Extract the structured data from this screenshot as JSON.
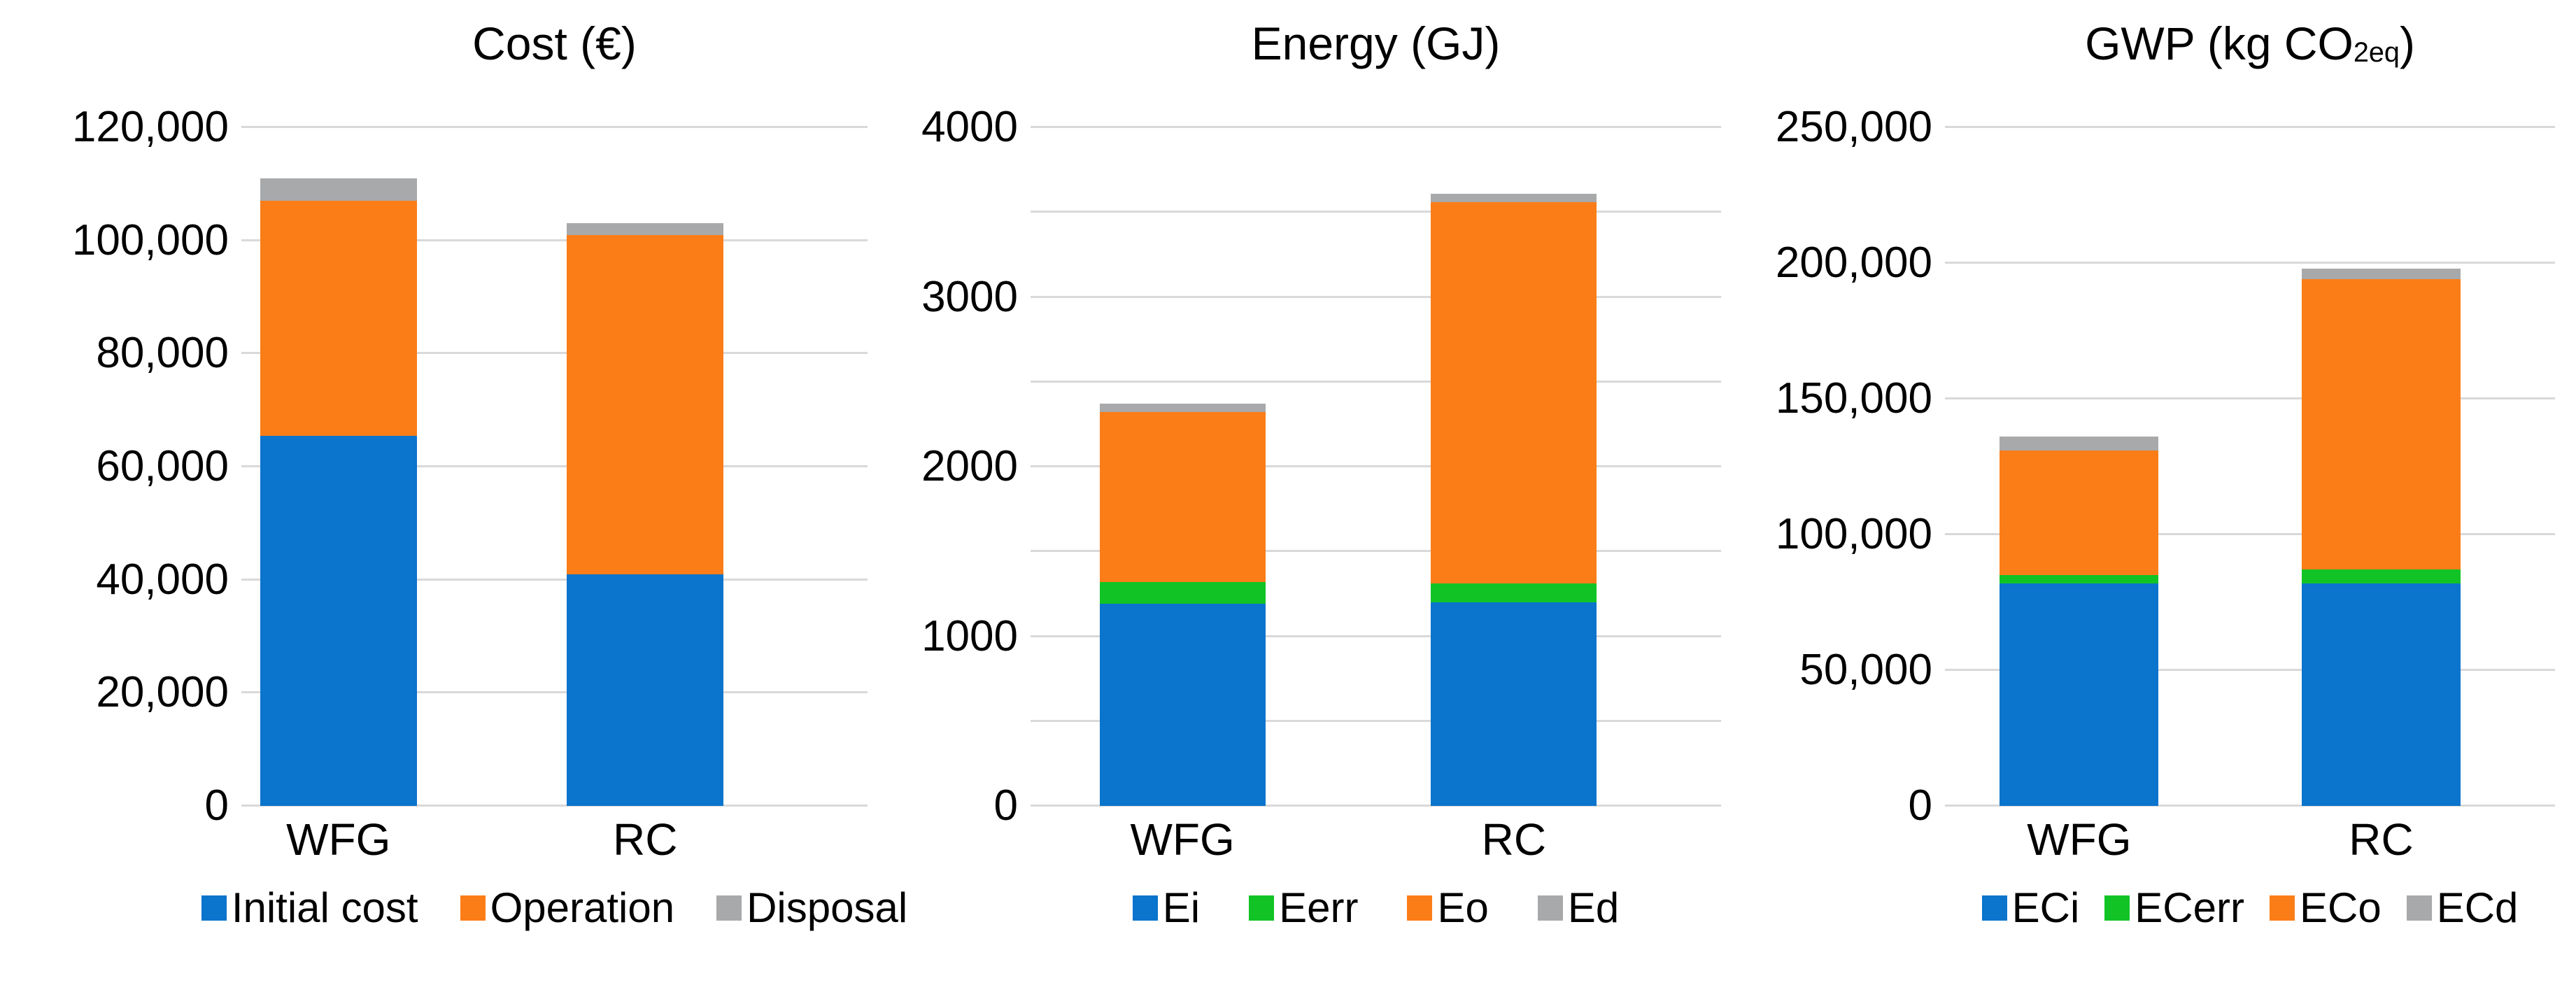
{
  "figure_background": "#FFFFFF",
  "colors": {
    "blue": "#0B74CC",
    "green": "#12C326",
    "orange": "#FB7D17",
    "gray": "#A8A9AB",
    "gridline": "#D9D9D9",
    "text": "#000000"
  },
  "chart_data": [
    {
      "type": "bar",
      "stacked": true,
      "title": "Cost (€)",
      "categories": [
        "WFG",
        "RC"
      ],
      "series": [
        {
          "name": "Initial cost",
          "color": "#0B74CC",
          "values": [
            65500,
            41000
          ]
        },
        {
          "name": "Operation",
          "color": "#FB7D17",
          "values": [
            41500,
            60000
          ]
        },
        {
          "name": "Disposal",
          "color": "#A8A9AB",
          "values": [
            4000,
            2000
          ]
        }
      ],
      "totals": [
        111000,
        103000
      ],
      "ylim": [
        0,
        120000
      ],
      "ticks": [
        {
          "v": 0,
          "label": "0"
        },
        {
          "v": 20000,
          "label": "20,000"
        },
        {
          "v": 40000,
          "label": "40,000"
        },
        {
          "v": 60000,
          "label": "60,000"
        },
        {
          "v": 80000,
          "label": "80,000"
        },
        {
          "v": 100000,
          "label": "100,000"
        },
        {
          "v": 120000,
          "label": "120,000"
        }
      ],
      "gridlines": [
        0,
        20000,
        40000,
        60000,
        80000,
        100000,
        120000
      ],
      "grid": "horizontal",
      "legend_position": "bottom",
      "xlabel": "",
      "ylabel": ""
    },
    {
      "type": "bar",
      "stacked": true,
      "title": "Energy (GJ)",
      "categories": [
        "WFG",
        "RC"
      ],
      "series": [
        {
          "name": "Ei",
          "color": "#0B74CC",
          "values": [
            1190,
            1200
          ]
        },
        {
          "name": "Eerr",
          "color": "#12C326",
          "values": [
            130,
            110
          ]
        },
        {
          "name": "Eo",
          "color": "#FB7D17",
          "values": [
            1000,
            2250
          ]
        },
        {
          "name": "Ed",
          "color": "#A8A9AB",
          "values": [
            50,
            50
          ]
        }
      ],
      "totals": [
        2370,
        3610
      ],
      "ylim": [
        0,
        4000
      ],
      "ticks": [
        {
          "v": 0,
          "label": "0"
        },
        {
          "v": 1000,
          "label": "1000"
        },
        {
          "v": 2000,
          "label": "2000"
        },
        {
          "v": 3000,
          "label": "3000"
        },
        {
          "v": 4000,
          "label": "4000"
        }
      ],
      "gridlines": [
        0,
        500,
        1000,
        1500,
        2000,
        2500,
        3000,
        3500,
        4000
      ],
      "grid": "horizontal",
      "legend_position": "bottom",
      "xlabel": "",
      "ylabel": ""
    },
    {
      "type": "bar",
      "stacked": true,
      "title": "GWP (kg CO2eq)",
      "title_prefix": "GWP (kg CO",
      "title_sub": "2eq",
      "title_suffix": ")",
      "categories": [
        "WFG",
        "RC"
      ],
      "series": [
        {
          "name": "ECi",
          "color": "#0B74CC",
          "values": [
            82000,
            82000
          ]
        },
        {
          "name": "ECerr",
          "color": "#12C326",
          "values": [
            3000,
            5000
          ]
        },
        {
          "name": "ECo",
          "color": "#FB7D17",
          "values": [
            46000,
            107000
          ]
        },
        {
          "name": "ECd",
          "color": "#A8A9AB",
          "values": [
            5000,
            4000
          ]
        }
      ],
      "totals": [
        136000,
        198000
      ],
      "ylim": [
        0,
        250000
      ],
      "ticks": [
        {
          "v": 0,
          "label": "0"
        },
        {
          "v": 50000,
          "label": "50,000"
        },
        {
          "v": 100000,
          "label": "100,000"
        },
        {
          "v": 150000,
          "label": "150,000"
        },
        {
          "v": 200000,
          "label": "200,000"
        },
        {
          "v": 250000,
          "label": "250,000"
        }
      ],
      "gridlines": [
        0,
        50000,
        100000,
        150000,
        200000,
        250000
      ],
      "grid": "horizontal",
      "legend_position": "bottom",
      "xlabel": "",
      "ylabel": ""
    }
  ]
}
